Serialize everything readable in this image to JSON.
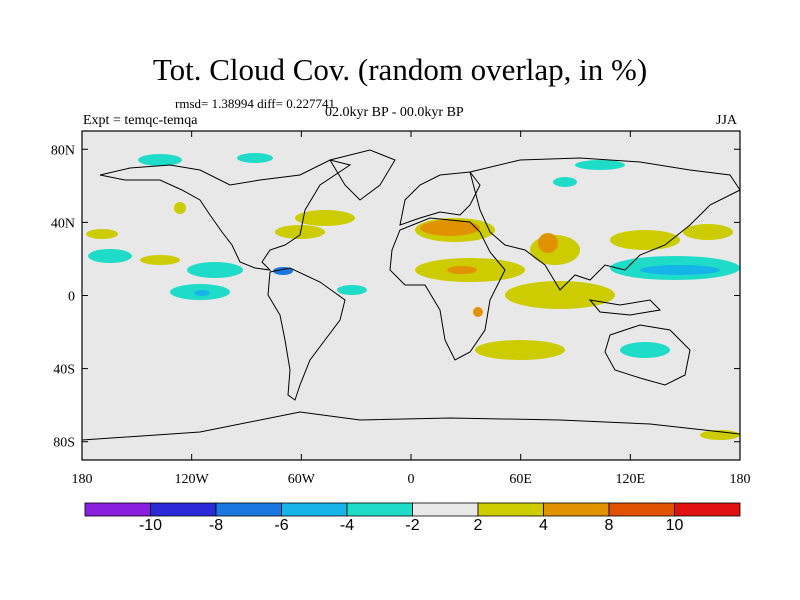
{
  "title": "Tot. Cloud Cov. (random overlap, in %)",
  "stats": "rmsd= 1.38994 diff= 0.227741",
  "period": "02.0kyr BP - 00.0kyr BP",
  "expt": "Expt = temqc-temqa",
  "season": "JJA",
  "axes": {
    "lon_ticks": [
      "180",
      "120W",
      "60W",
      "0",
      "60E",
      "120E",
      "180"
    ],
    "lon_values": [
      -180,
      -120,
      -60,
      0,
      60,
      120,
      180
    ],
    "lat_ticks": [
      "80N",
      "40N",
      "0",
      "40S",
      "80S"
    ],
    "lat_values": [
      80,
      40,
      0,
      -40,
      -80
    ],
    "lon_range": [
      -180,
      180
    ],
    "lat_range": [
      -90,
      90
    ]
  },
  "colorbar": {
    "colors": [
      "#8b1fe0",
      "#2a2ad8",
      "#1877e0",
      "#16b4e8",
      "#1fdcc8",
      "#e8e8e8",
      "#cccc00",
      "#e09200",
      "#e05200",
      "#e01010"
    ],
    "labels": [
      "-10",
      "-8",
      "-6",
      "-4",
      "-2",
      "2",
      "4",
      "8",
      "10"
    ]
  },
  "colors": {
    "land_neutral": "#e8e8e8",
    "coast": "#000000"
  }
}
